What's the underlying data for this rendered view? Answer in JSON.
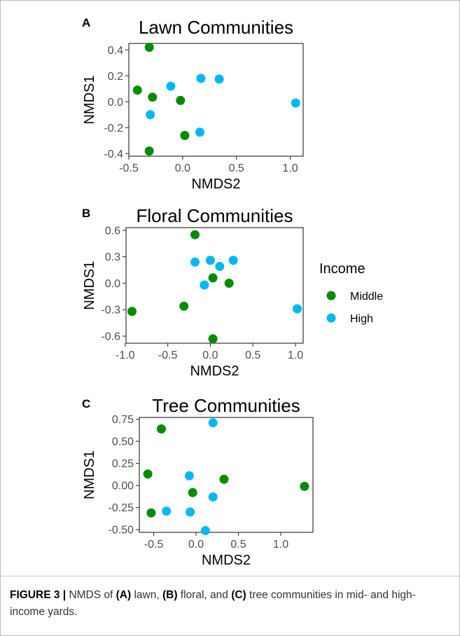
{
  "caption": {
    "label": "FIGURE 3 |",
    "parts": [
      {
        "text": " NMDS of ",
        "bold": false
      },
      {
        "text": "(A)",
        "bold": true
      },
      {
        "text": " lawn, ",
        "bold": false
      },
      {
        "text": "(B)",
        "bold": true
      },
      {
        "text": " floral, and ",
        "bold": false
      },
      {
        "text": "(C)",
        "bold": true
      },
      {
        "text": " tree communities in mid- and high-income yards.",
        "bold": false
      }
    ]
  },
  "legend": {
    "title": "Income",
    "placement": "right",
    "items": [
      {
        "label": "Middle",
        "color": "#008c00"
      },
      {
        "label": "High",
        "color": "#00b8f0"
      }
    ]
  },
  "chart_data": [
    {
      "panel": "A",
      "type": "scatter",
      "title": "Lawn Communities",
      "xlabel": "NMDS2",
      "ylabel": "NMDS1",
      "xlim": [
        -0.5,
        1.12
      ],
      "ylim": [
        -0.42,
        0.45
      ],
      "xticks": [
        -0.5,
        0.0,
        0.5,
        1.0
      ],
      "xtick_labels": [
        "-0.5",
        "0.0",
        "0.5",
        "1.0"
      ],
      "yticks": [
        -0.4,
        -0.2,
        0.0,
        0.2,
        0.4
      ],
      "ytick_labels": [
        "-0.4",
        "-0.2",
        "0.0",
        "0.2",
        "0.4"
      ],
      "grid": false,
      "series": [
        {
          "name": "Middle",
          "color": "#008c00",
          "x": [
            -0.31,
            -0.42,
            -0.28,
            -0.02,
            0.02,
            -0.31
          ],
          "y": [
            0.42,
            0.09,
            0.035,
            0.01,
            -0.26,
            -0.38
          ]
        },
        {
          "name": "High",
          "color": "#00b8f0",
          "x": [
            -0.11,
            0.17,
            0.34,
            1.05,
            -0.3,
            0.16
          ],
          "y": [
            0.12,
            0.18,
            0.175,
            -0.01,
            -0.1,
            -0.235
          ]
        }
      ]
    },
    {
      "panel": "B",
      "type": "scatter",
      "title": "Floral Communities",
      "xlabel": "NMDS2",
      "ylabel": "NMDS1",
      "xlim": [
        -0.99,
        1.09
      ],
      "ylim": [
        -0.68,
        0.63
      ],
      "xticks": [
        -1.0,
        -0.5,
        0.0,
        0.5,
        1.0
      ],
      "xtick_labels": [
        "-1.0",
        "-0.5",
        "0.0",
        "0.5",
        "1.0"
      ],
      "yticks": [
        -0.6,
        -0.3,
        0.0,
        0.3,
        0.6
      ],
      "ytick_labels": [
        "-0.6",
        "-0.3",
        "0.0",
        "0.3",
        "0.6"
      ],
      "grid": false,
      "series": [
        {
          "name": "Middle",
          "color": "#008c00",
          "x": [
            -0.18,
            0.03,
            0.22,
            -0.31,
            -0.92,
            0.03
          ],
          "y": [
            0.55,
            0.06,
            0.0,
            -0.26,
            -0.32,
            -0.63
          ]
        },
        {
          "name": "High",
          "color": "#00b8f0",
          "x": [
            -0.18,
            0.0,
            0.27,
            0.11,
            -0.07,
            1.02
          ],
          "y": [
            0.24,
            0.26,
            0.26,
            0.19,
            -0.02,
            -0.29
          ]
        }
      ]
    },
    {
      "panel": "C",
      "type": "scatter",
      "title": "Tree Communities",
      "xlabel": "NMDS2",
      "ylabel": "NMDS1",
      "xlim": [
        -0.67,
        1.38
      ],
      "ylim": [
        -0.53,
        0.77
      ],
      "xticks": [
        -0.5,
        0.0,
        0.5,
        1.0
      ],
      "xtick_labels": [
        "-0.5",
        "0.0",
        "0.5",
        "1.0"
      ],
      "yticks": [
        -0.5,
        -0.25,
        0.0,
        0.25,
        0.5,
        0.75
      ],
      "ytick_labels": [
        "-0.50",
        "-0.25",
        "0.00",
        "0.25",
        "0.50",
        "0.75"
      ],
      "grid": false,
      "series": [
        {
          "name": "Middle",
          "color": "#008c00",
          "x": [
            -0.41,
            -0.57,
            0.33,
            1.28,
            -0.04,
            -0.53
          ],
          "y": [
            0.64,
            0.13,
            0.07,
            -0.01,
            -0.08,
            -0.31
          ]
        },
        {
          "name": "High",
          "color": "#00b8f0",
          "x": [
            0.2,
            -0.08,
            0.2,
            -0.35,
            -0.07,
            0.11
          ],
          "y": [
            0.71,
            0.11,
            -0.13,
            -0.29,
            -0.3,
            -0.51
          ]
        }
      ]
    }
  ]
}
